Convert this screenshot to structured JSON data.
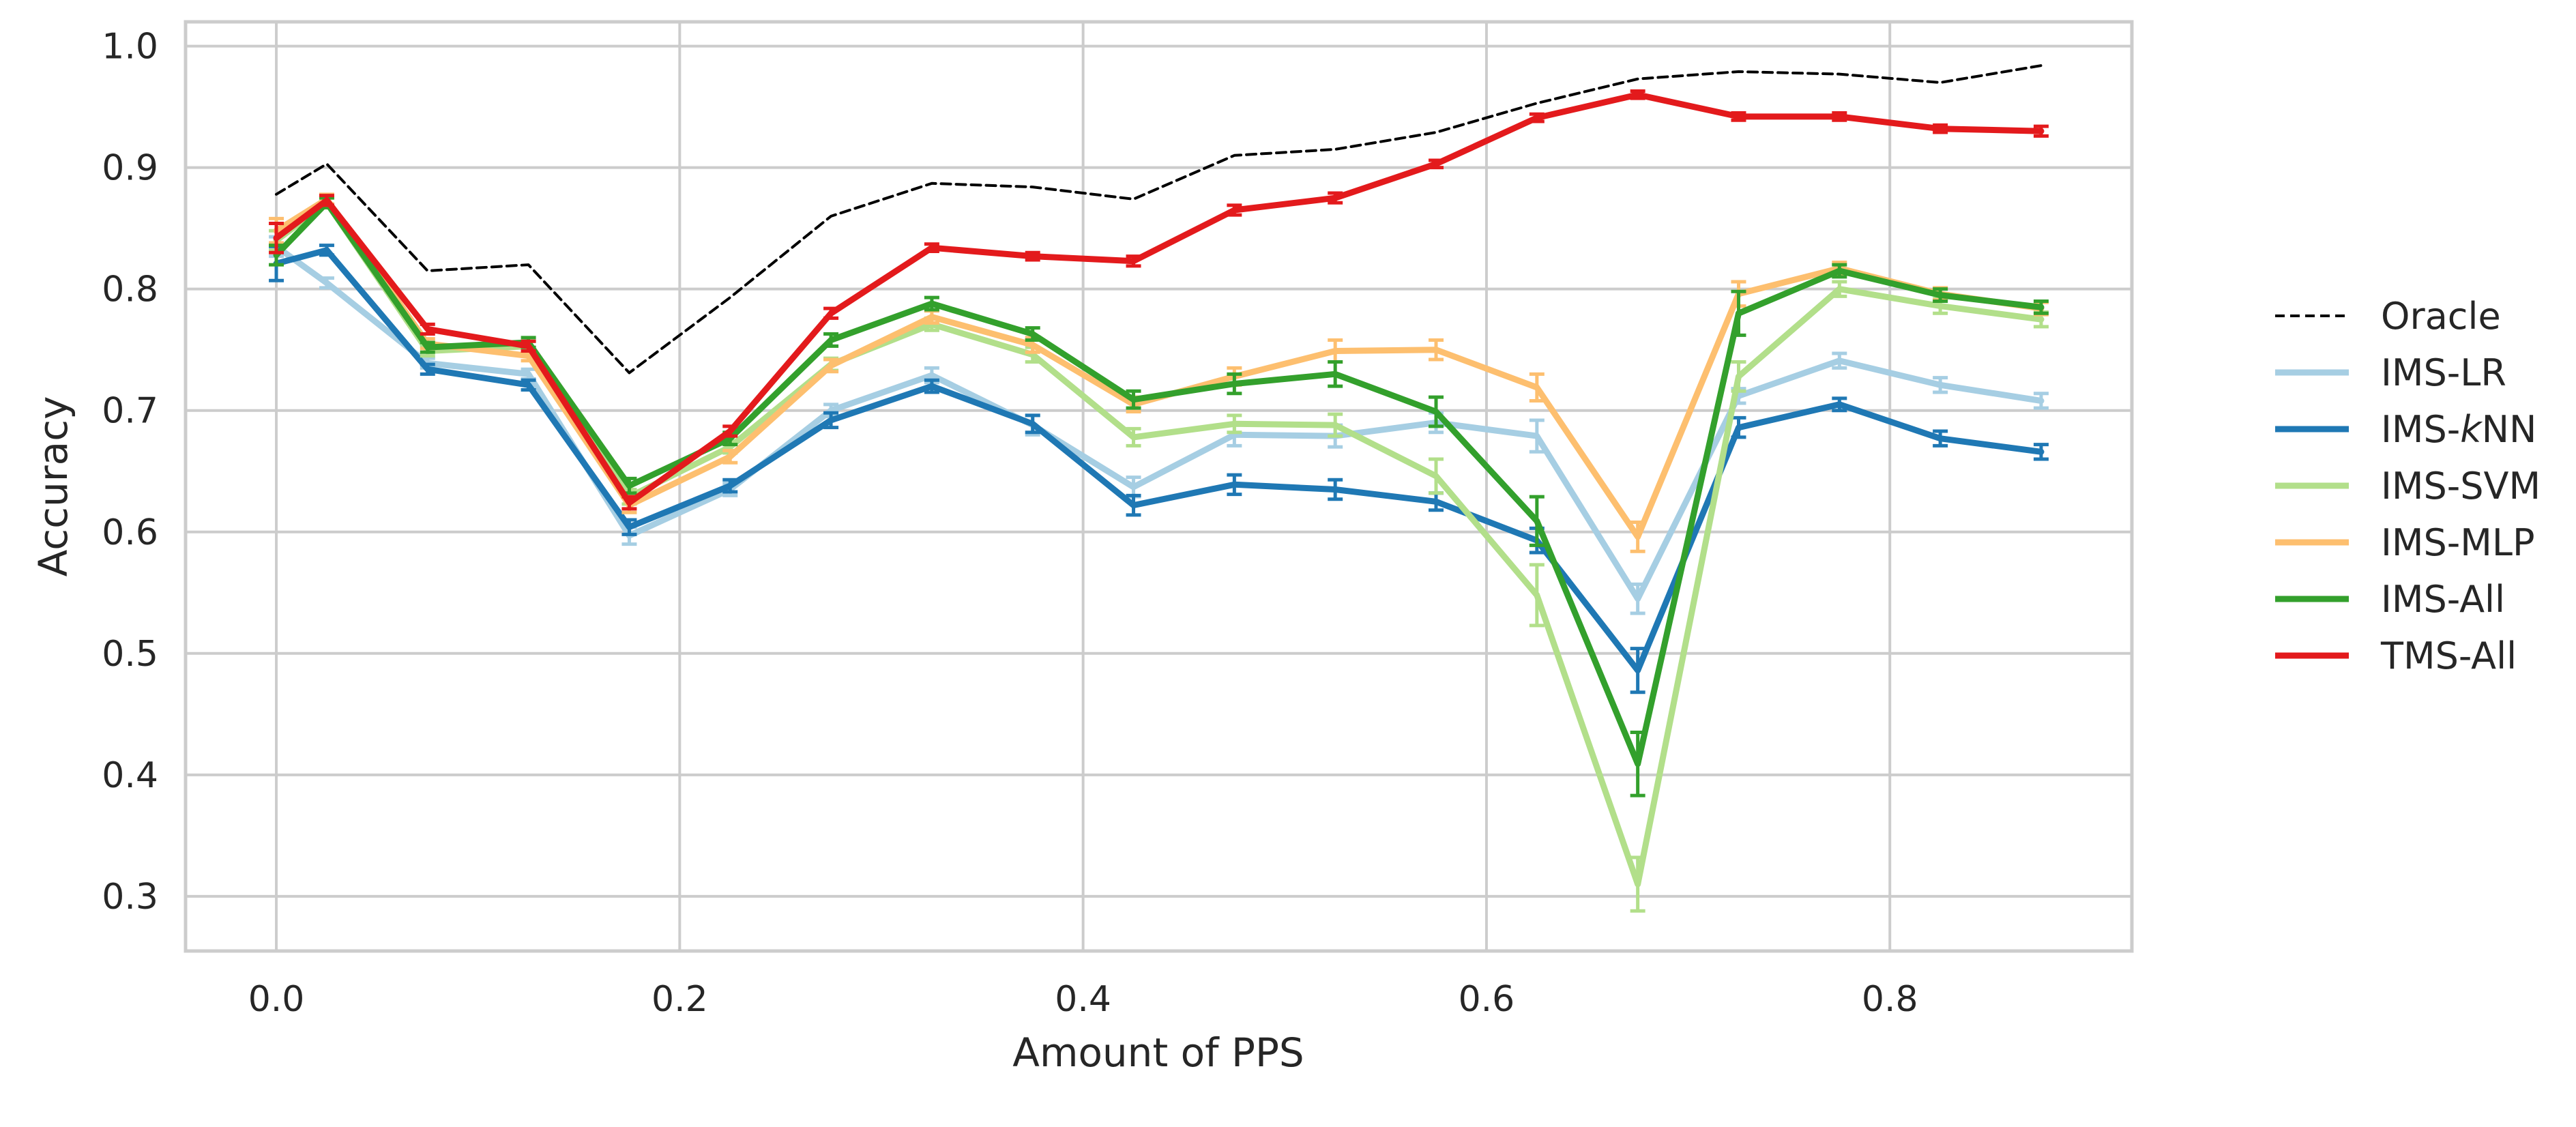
{
  "chart_data": {
    "type": "line",
    "xlabel": "Amount of PPS",
    "ylabel": "Accuracy",
    "xlim": [
      -0.045,
      0.92
    ],
    "ylim": [
      0.255,
      1.02
    ],
    "xticks": [
      0.0,
      0.2,
      0.4,
      0.6,
      0.8
    ],
    "xtick_labels": [
      "0.0",
      "0.2",
      "0.4",
      "0.6",
      "0.8"
    ],
    "yticks": [
      0.3,
      0.4,
      0.5,
      0.6,
      0.7,
      0.8,
      0.9,
      1.0
    ],
    "ytick_labels": [
      "0.3",
      "0.4",
      "0.5",
      "0.6",
      "0.7",
      "0.8",
      "0.9",
      "1.0"
    ],
    "grid": true,
    "legend_position": "right",
    "x": [
      0.0,
      0.025,
      0.075,
      0.125,
      0.175,
      0.225,
      0.275,
      0.325,
      0.375,
      0.425,
      0.475,
      0.525,
      0.575,
      0.625,
      0.675,
      0.725,
      0.775,
      0.825,
      0.875
    ],
    "series": [
      {
        "name": "Oracle",
        "color": "#000000",
        "dashed": true,
        "values": [
          0.878,
          0.903,
          0.815,
          0.82,
          0.731,
          0.793,
          0.86,
          0.887,
          0.884,
          0.874,
          0.91,
          0.915,
          0.929,
          0.953,
          0.973,
          0.979,
          0.977,
          0.97,
          0.984
        ]
      },
      {
        "name": "IMS-LR",
        "color": "#a6cee3",
        "values": [
          0.835,
          0.805,
          0.739,
          0.73,
          0.597,
          0.635,
          0.7,
          0.729,
          0.688,
          0.637,
          0.68,
          0.679,
          0.69,
          0.679,
          0.545,
          0.712,
          0.741,
          0.721,
          0.708
        ],
        "err": [
          0.008,
          0.004,
          0.004,
          0.004,
          0.007,
          0.005,
          0.005,
          0.006,
          0.008,
          0.008,
          0.009,
          0.009,
          0.008,
          0.013,
          0.012,
          0.006,
          0.006,
          0.006,
          0.006
        ]
      },
      {
        "name": "IMS-kNN",
        "label_prefix": "IMS-",
        "label_italic": "k",
        "label_suffix": "NN",
        "color": "#1f78b4",
        "values": [
          0.821,
          0.832,
          0.734,
          0.721,
          0.604,
          0.638,
          0.692,
          0.72,
          0.689,
          0.622,
          0.639,
          0.635,
          0.625,
          0.593,
          0.486,
          0.686,
          0.705,
          0.677,
          0.666
        ],
        "err": [
          0.014,
          0.004,
          0.004,
          0.004,
          0.006,
          0.005,
          0.006,
          0.005,
          0.007,
          0.008,
          0.008,
          0.008,
          0.007,
          0.01,
          0.018,
          0.008,
          0.005,
          0.006,
          0.006
        ]
      },
      {
        "name": "IMS-SVM",
        "color": "#b2df8a",
        "values": [
          0.84,
          0.871,
          0.749,
          0.753,
          0.629,
          0.67,
          0.738,
          0.771,
          0.746,
          0.678,
          0.689,
          0.688,
          0.646,
          0.548,
          0.31,
          0.728,
          0.8,
          0.786,
          0.775
        ],
        "err": [
          0.008,
          0.004,
          0.004,
          0.004,
          0.006,
          0.005,
          0.005,
          0.005,
          0.006,
          0.007,
          0.007,
          0.009,
          0.014,
          0.025,
          0.022,
          0.012,
          0.006,
          0.006,
          0.006
        ]
      },
      {
        "name": "IMS-MLP",
        "color": "#fdbf6f",
        "values": [
          0.848,
          0.874,
          0.755,
          0.745,
          0.622,
          0.662,
          0.737,
          0.777,
          0.754,
          0.705,
          0.728,
          0.749,
          0.75,
          0.719,
          0.596,
          0.796,
          0.817,
          0.796,
          0.784
        ],
        "err": [
          0.01,
          0.004,
          0.004,
          0.004,
          0.006,
          0.005,
          0.005,
          0.005,
          0.006,
          0.006,
          0.007,
          0.009,
          0.008,
          0.011,
          0.012,
          0.01,
          0.005,
          0.005,
          0.005
        ]
      },
      {
        "name": "IMS-All",
        "color": "#33a02c",
        "values": [
          0.828,
          0.871,
          0.752,
          0.756,
          0.638,
          0.677,
          0.758,
          0.788,
          0.763,
          0.709,
          0.722,
          0.73,
          0.699,
          0.609,
          0.409,
          0.78,
          0.815,
          0.795,
          0.785
        ],
        "err": [
          0.008,
          0.004,
          0.004,
          0.004,
          0.006,
          0.005,
          0.005,
          0.005,
          0.005,
          0.007,
          0.008,
          0.01,
          0.012,
          0.02,
          0.026,
          0.018,
          0.005,
          0.005,
          0.005
        ]
      },
      {
        "name": "TMS-All",
        "color": "#e31a1c",
        "values": [
          0.842,
          0.873,
          0.767,
          0.753,
          0.624,
          0.683,
          0.78,
          0.834,
          0.827,
          0.823,
          0.865,
          0.875,
          0.903,
          0.941,
          0.96,
          0.942,
          0.942,
          0.932,
          0.93
        ],
        "err": [
          0.012,
          0.004,
          0.004,
          0.004,
          0.005,
          0.004,
          0.004,
          0.003,
          0.003,
          0.004,
          0.004,
          0.004,
          0.003,
          0.003,
          0.003,
          0.003,
          0.003,
          0.003,
          0.004
        ]
      }
    ]
  }
}
